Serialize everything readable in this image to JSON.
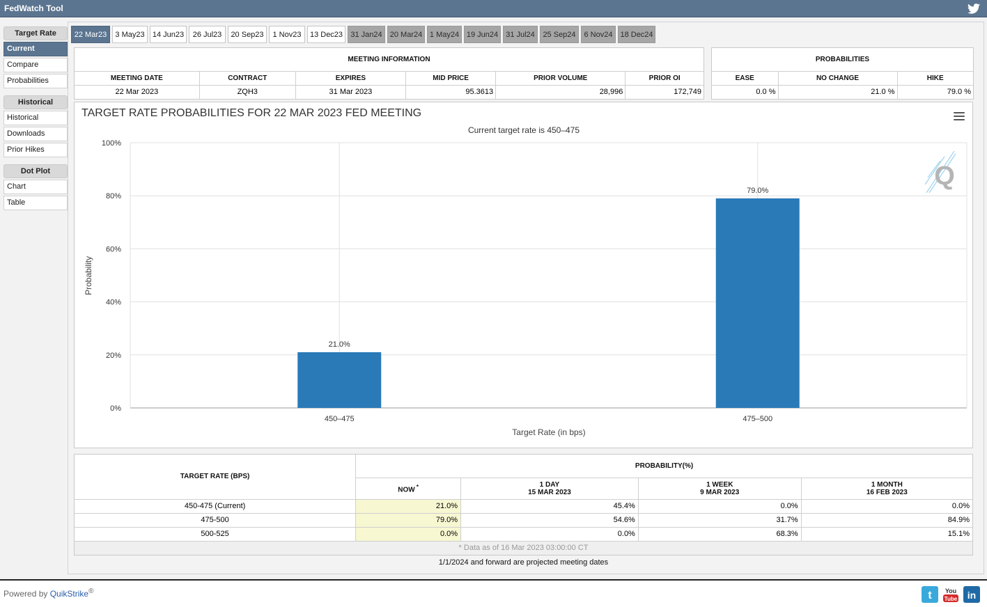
{
  "app": {
    "title": "FedWatch Tool"
  },
  "sidebar": {
    "groups": [
      {
        "heading": "Target Rate",
        "items": [
          "Current",
          "Compare",
          "Probabilities"
        ]
      },
      {
        "heading": "Historical",
        "items": [
          "Historical",
          "Downloads",
          "Prior Hikes"
        ]
      },
      {
        "heading": "Dot Plot",
        "items": [
          "Chart",
          "Table"
        ]
      }
    ],
    "active_item": "Current"
  },
  "tabs": [
    {
      "label": "22 Mar23",
      "state": "active"
    },
    {
      "label": "3 May23",
      "state": "normal"
    },
    {
      "label": "14 Jun23",
      "state": "normal"
    },
    {
      "label": "26 Jul23",
      "state": "normal"
    },
    {
      "label": "20 Sep23",
      "state": "normal"
    },
    {
      "label": "1 Nov23",
      "state": "normal"
    },
    {
      "label": "13 Dec23",
      "state": "normal"
    },
    {
      "label": "31 Jan24",
      "state": "projected"
    },
    {
      "label": "20 Mar24",
      "state": "projected"
    },
    {
      "label": "1 May24",
      "state": "projected"
    },
    {
      "label": "19 Jun24",
      "state": "projected"
    },
    {
      "label": "31 Jul24",
      "state": "projected"
    },
    {
      "label": "25 Sep24",
      "state": "projected"
    },
    {
      "label": "6 Nov24",
      "state": "projected"
    },
    {
      "label": "18 Dec24",
      "state": "projected"
    }
  ],
  "meeting_info": {
    "heading": "MEETING INFORMATION",
    "columns": [
      "MEETING DATE",
      "CONTRACT",
      "EXPIRES",
      "MID PRICE",
      "PRIOR VOLUME",
      "PRIOR OI"
    ],
    "values": [
      "22 Mar 2023",
      "ZQH3",
      "31 Mar 2023",
      "95.3613",
      "28,996",
      "172,749"
    ]
  },
  "probabilities": {
    "heading": "PROBABILITIES",
    "columns": [
      "EASE",
      "NO CHANGE",
      "HIKE"
    ],
    "values": [
      "0.0 %",
      "21.0 %",
      "79.0 %"
    ]
  },
  "chart_data": {
    "type": "bar",
    "title": "TARGET RATE PROBABILITIES FOR 22 MAR 2023 FED MEETING",
    "subtitle": "Current target rate is 450–475",
    "xlabel": "Target Rate (in bps)",
    "ylabel": "Probability",
    "categories": [
      "450–475",
      "475–500"
    ],
    "values": [
      21.0,
      79.0
    ],
    "data_labels": [
      "21.0%",
      "79.0%"
    ],
    "ylim": [
      0,
      100
    ],
    "yticks": [
      "0%",
      "20%",
      "40%",
      "60%",
      "80%",
      "100%"
    ],
    "bar_color": "#2a7ab8",
    "grid": true,
    "legend": "none"
  },
  "prob_table": {
    "col_target": "TARGET RATE (BPS)",
    "col_group": "PROBABILITY(%)",
    "sub_cols": [
      {
        "line1": "NOW",
        "line2": "",
        "mark": "*"
      },
      {
        "line1": "1 DAY",
        "line2": "15 MAR 2023",
        "mark": ""
      },
      {
        "line1": "1 WEEK",
        "line2": "9 MAR 2023",
        "mark": ""
      },
      {
        "line1": "1 MONTH",
        "line2": "16 FEB 2023",
        "mark": ""
      }
    ],
    "rows": [
      {
        "rate": "450-475 (Current)",
        "vals": [
          "21.0%",
          "45.4%",
          "0.0%",
          "0.0%"
        ]
      },
      {
        "rate": "475-500",
        "vals": [
          "79.0%",
          "54.6%",
          "31.7%",
          "84.9%"
        ]
      },
      {
        "rate": "500-525",
        "vals": [
          "0.0%",
          "0.0%",
          "68.3%",
          "15.1%"
        ]
      }
    ],
    "data_note": "* Data as of 16 Mar 2023 03:00:00 CT"
  },
  "footer_note": "1/1/2024 and forward are projected meeting dates",
  "bottom": {
    "powered_prefix": "Powered by ",
    "brand": "QuikStrike",
    "reg": "®"
  },
  "colors": {
    "header_blue": "#5b7590",
    "projected_tab": "#a6a6a6",
    "now_highlight": "#f7f7d2"
  }
}
